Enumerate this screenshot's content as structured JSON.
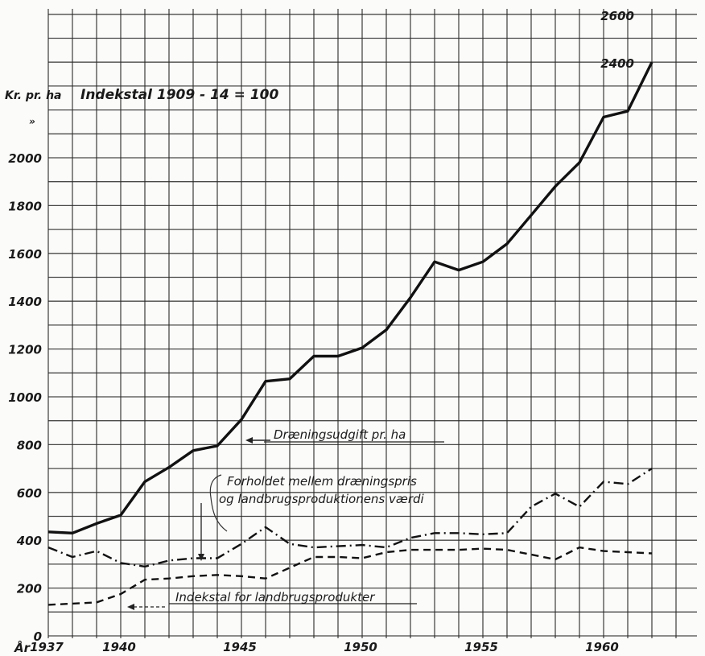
{
  "chart_data": {
    "type": "line",
    "title": "Indekstal 1909 - 14 = 100",
    "ylabel": "Kr. pr. ha",
    "ylabel_sub": "»",
    "xlabel": "År",
    "x_ticks": [
      "1937",
      "1940",
      "1945",
      "1950",
      "1955",
      "1960"
    ],
    "y_ticks": [
      "0",
      "200",
      "400",
      "600",
      "800",
      "1000",
      "1200",
      "1400",
      "1600",
      "1800",
      "2000"
    ],
    "y_ticks_right": [
      "2400",
      "2600"
    ],
    "xlim": [
      1937,
      1963
    ],
    "ylim": [
      0,
      2600
    ],
    "grid": true,
    "x": [
      1937,
      1938,
      1939,
      1940,
      1941,
      1942,
      1943,
      1944,
      1945,
      1946,
      1947,
      1948,
      1949,
      1950,
      1951,
      1952,
      1953,
      1954,
      1955,
      1956,
      1957,
      1958,
      1959,
      1960,
      1961,
      1962
    ],
    "series": [
      {
        "name": "Dræningsudgift pr. ha",
        "style": "solid",
        "values": [
          435,
          430,
          470,
          505,
          645,
          705,
          775,
          795,
          905,
          1065,
          1075,
          1170,
          1170,
          1205,
          1280,
          1415,
          1565,
          1530,
          1565,
          1640,
          1760,
          1880,
          1980,
          2170,
          2195,
          2400
        ]
      },
      {
        "name": "Forholdet mellem dræningspris og landbrugsproduktionens værdi",
        "style": "dash-dot",
        "values": [
          370,
          330,
          355,
          305,
          290,
          315,
          325,
          325,
          385,
          455,
          385,
          370,
          375,
          380,
          370,
          410,
          430,
          430,
          425,
          430,
          540,
          595,
          540,
          645,
          635,
          700
        ]
      },
      {
        "name": "Indekstal for landbrugsprodukter",
        "style": "dashed",
        "values": [
          130,
          135,
          140,
          175,
          235,
          240,
          250,
          255,
          250,
          240,
          285,
          330,
          330,
          325,
          350,
          360,
          360,
          360,
          365,
          360,
          340,
          320,
          370,
          355,
          350,
          345
        ]
      }
    ]
  }
}
